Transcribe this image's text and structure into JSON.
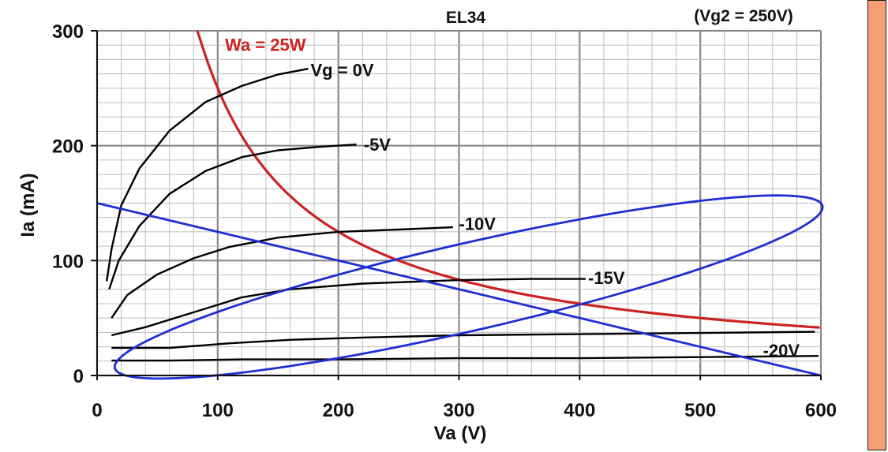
{
  "page": {
    "side_panel_color": "#f4a074"
  },
  "chart_data": {
    "type": "line",
    "title": "EL34",
    "subtitle": "(Vg2 = 250V)",
    "xlabel": "Va (V)",
    "ylabel": "Ia (mA)",
    "xlim": [
      0,
      600
    ],
    "ylim": [
      0,
      300
    ],
    "x_ticks": [
      0,
      100,
      200,
      300,
      400,
      500,
      600
    ],
    "y_ticks": [
      0,
      100,
      200,
      300
    ],
    "x_tick_labels": [
      "0",
      "100",
      "200",
      "300",
      "400",
      "500",
      "600"
    ],
    "y_tick_labels": [
      "0",
      "100",
      "200",
      "300"
    ],
    "grid": true,
    "colors": {
      "grid_major": "#888888",
      "grid_minor": "#bdbdbd",
      "plate_curves": "#000000",
      "dissipation": "#cc2222",
      "load_lines": "#1f2fd0"
    },
    "plate_curves": [
      {
        "label": "Vg = 0V",
        "points": [
          [
            8,
            82
          ],
          [
            12,
            110
          ],
          [
            20,
            148
          ],
          [
            35,
            180
          ],
          [
            60,
            213
          ],
          [
            90,
            238
          ],
          [
            120,
            252
          ],
          [
            150,
            262
          ],
          [
            175,
            267
          ]
        ]
      },
      {
        "label": "-5V",
        "points": [
          [
            10,
            75
          ],
          [
            18,
            100
          ],
          [
            35,
            130
          ],
          [
            60,
            158
          ],
          [
            90,
            178
          ],
          [
            120,
            190
          ],
          [
            150,
            196
          ],
          [
            185,
            199
          ],
          [
            215,
            201
          ]
        ]
      },
      {
        "label": "-10V",
        "points": [
          [
            12,
            50
          ],
          [
            25,
            70
          ],
          [
            50,
            88
          ],
          [
            80,
            102
          ],
          [
            110,
            112
          ],
          [
            150,
            120
          ],
          [
            200,
            125
          ],
          [
            250,
            127
          ],
          [
            295,
            129
          ]
        ]
      },
      {
        "label": "-15V",
        "points": [
          [
            12,
            35
          ],
          [
            40,
            42
          ],
          [
            80,
            55
          ],
          [
            120,
            68
          ],
          [
            160,
            75
          ],
          [
            220,
            80
          ],
          [
            300,
            83
          ],
          [
            360,
            84
          ],
          [
            405,
            84
          ]
        ]
      },
      {
        "label": "",
        "points": [
          [
            12,
            24
          ],
          [
            60,
            24
          ],
          [
            110,
            28
          ],
          [
            160,
            31
          ],
          [
            220,
            33
          ],
          [
            300,
            35
          ],
          [
            400,
            36
          ],
          [
            500,
            37
          ],
          [
            595,
            38
          ]
        ]
      },
      {
        "label": "-20V",
        "points": [
          [
            12,
            13
          ],
          [
            60,
            13
          ],
          [
            120,
            14
          ],
          [
            200,
            14
          ],
          [
            300,
            15
          ],
          [
            400,
            15
          ],
          [
            500,
            16
          ],
          [
            598,
            17
          ]
        ]
      }
    ],
    "dissipation_curve": {
      "label": "Wa = 25W",
      "power_w": 25,
      "va_start": 83,
      "va_end": 600
    },
    "load_lines": [
      {
        "points": [
          [
            0,
            150
          ],
          [
            600,
            0
          ]
        ]
      }
    ],
    "load_ellipse": {
      "center": [
        308,
        77
      ],
      "semi_axis_1": [
        292,
        73
      ],
      "semi_axis_2": [
        -29,
        32
      ]
    },
    "labels": [
      {
        "text": "Wa = 25W",
        "at": [
          106,
          288
        ],
        "color": "#cc2222"
      },
      {
        "text": "Vg = 0V",
        "at": [
          177,
          266
        ],
        "color": "#111111"
      },
      {
        "text": "-5V",
        "at": [
          221,
          201
        ],
        "color": "#111111"
      },
      {
        "text": "-10V",
        "at": [
          300,
          132
        ],
        "color": "#111111"
      },
      {
        "text": "-15V",
        "at": [
          407,
          85
        ],
        "color": "#111111"
      },
      {
        "text": "-20V",
        "at": [
          552,
          22
        ],
        "color": "#111111"
      }
    ]
  }
}
